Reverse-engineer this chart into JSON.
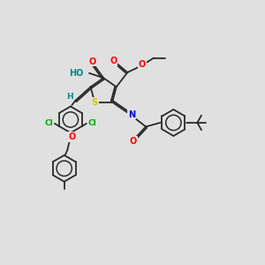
{
  "bg_color": "#e0e0e0",
  "bond_color": "#2a2a2a",
  "atom_colors": {
    "O": "#ff0000",
    "N": "#0000cc",
    "S": "#cccc00",
    "Cl": "#00aa00",
    "H": "#008888",
    "C": "#2a2a2a"
  },
  "lw": 1.3,
  "fs": 6.5
}
